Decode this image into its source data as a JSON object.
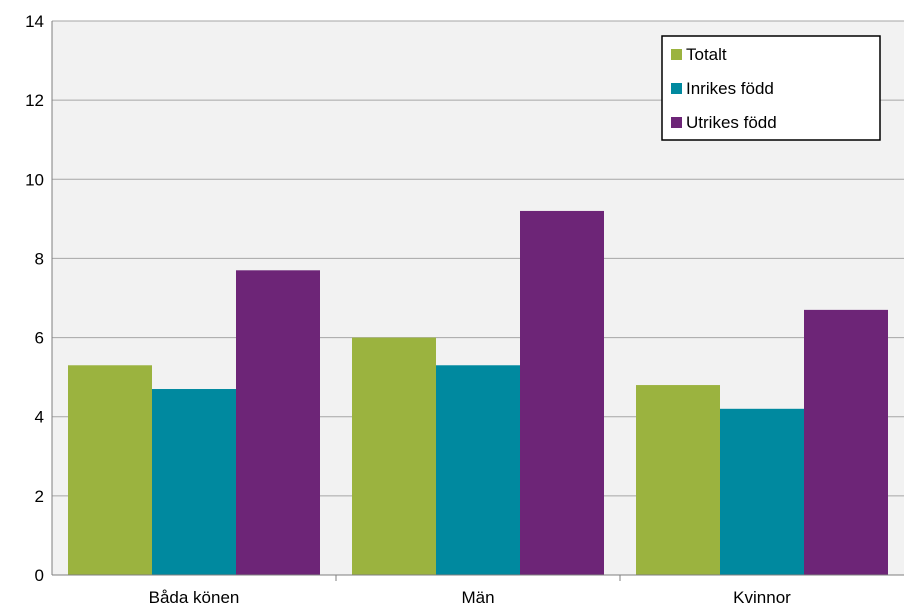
{
  "chart_data": {
    "type": "bar",
    "title": "",
    "xlabel": "",
    "ylabel": "",
    "categories": [
      "Båda könen",
      "Män",
      "Kvinnor"
    ],
    "series": [
      {
        "name": "Totalt",
        "values": [
          5.3,
          6.0,
          4.8
        ],
        "color": "#9bb33f"
      },
      {
        "name": "Inrikes född",
        "values": [
          4.7,
          5.3,
          4.2
        ],
        "color": "#00899f"
      },
      {
        "name": "Utrikes född",
        "values": [
          7.7,
          9.2,
          6.7
        ],
        "color": "#6d2577"
      }
    ],
    "ylim": [
      0,
      14
    ],
    "yticks": [
      0,
      2,
      4,
      6,
      8,
      10,
      12,
      14
    ],
    "grid": true,
    "legend_position": "top-right",
    "plot_background": "#f2f2f2",
    "gridline_color": "#a6a6a6"
  }
}
